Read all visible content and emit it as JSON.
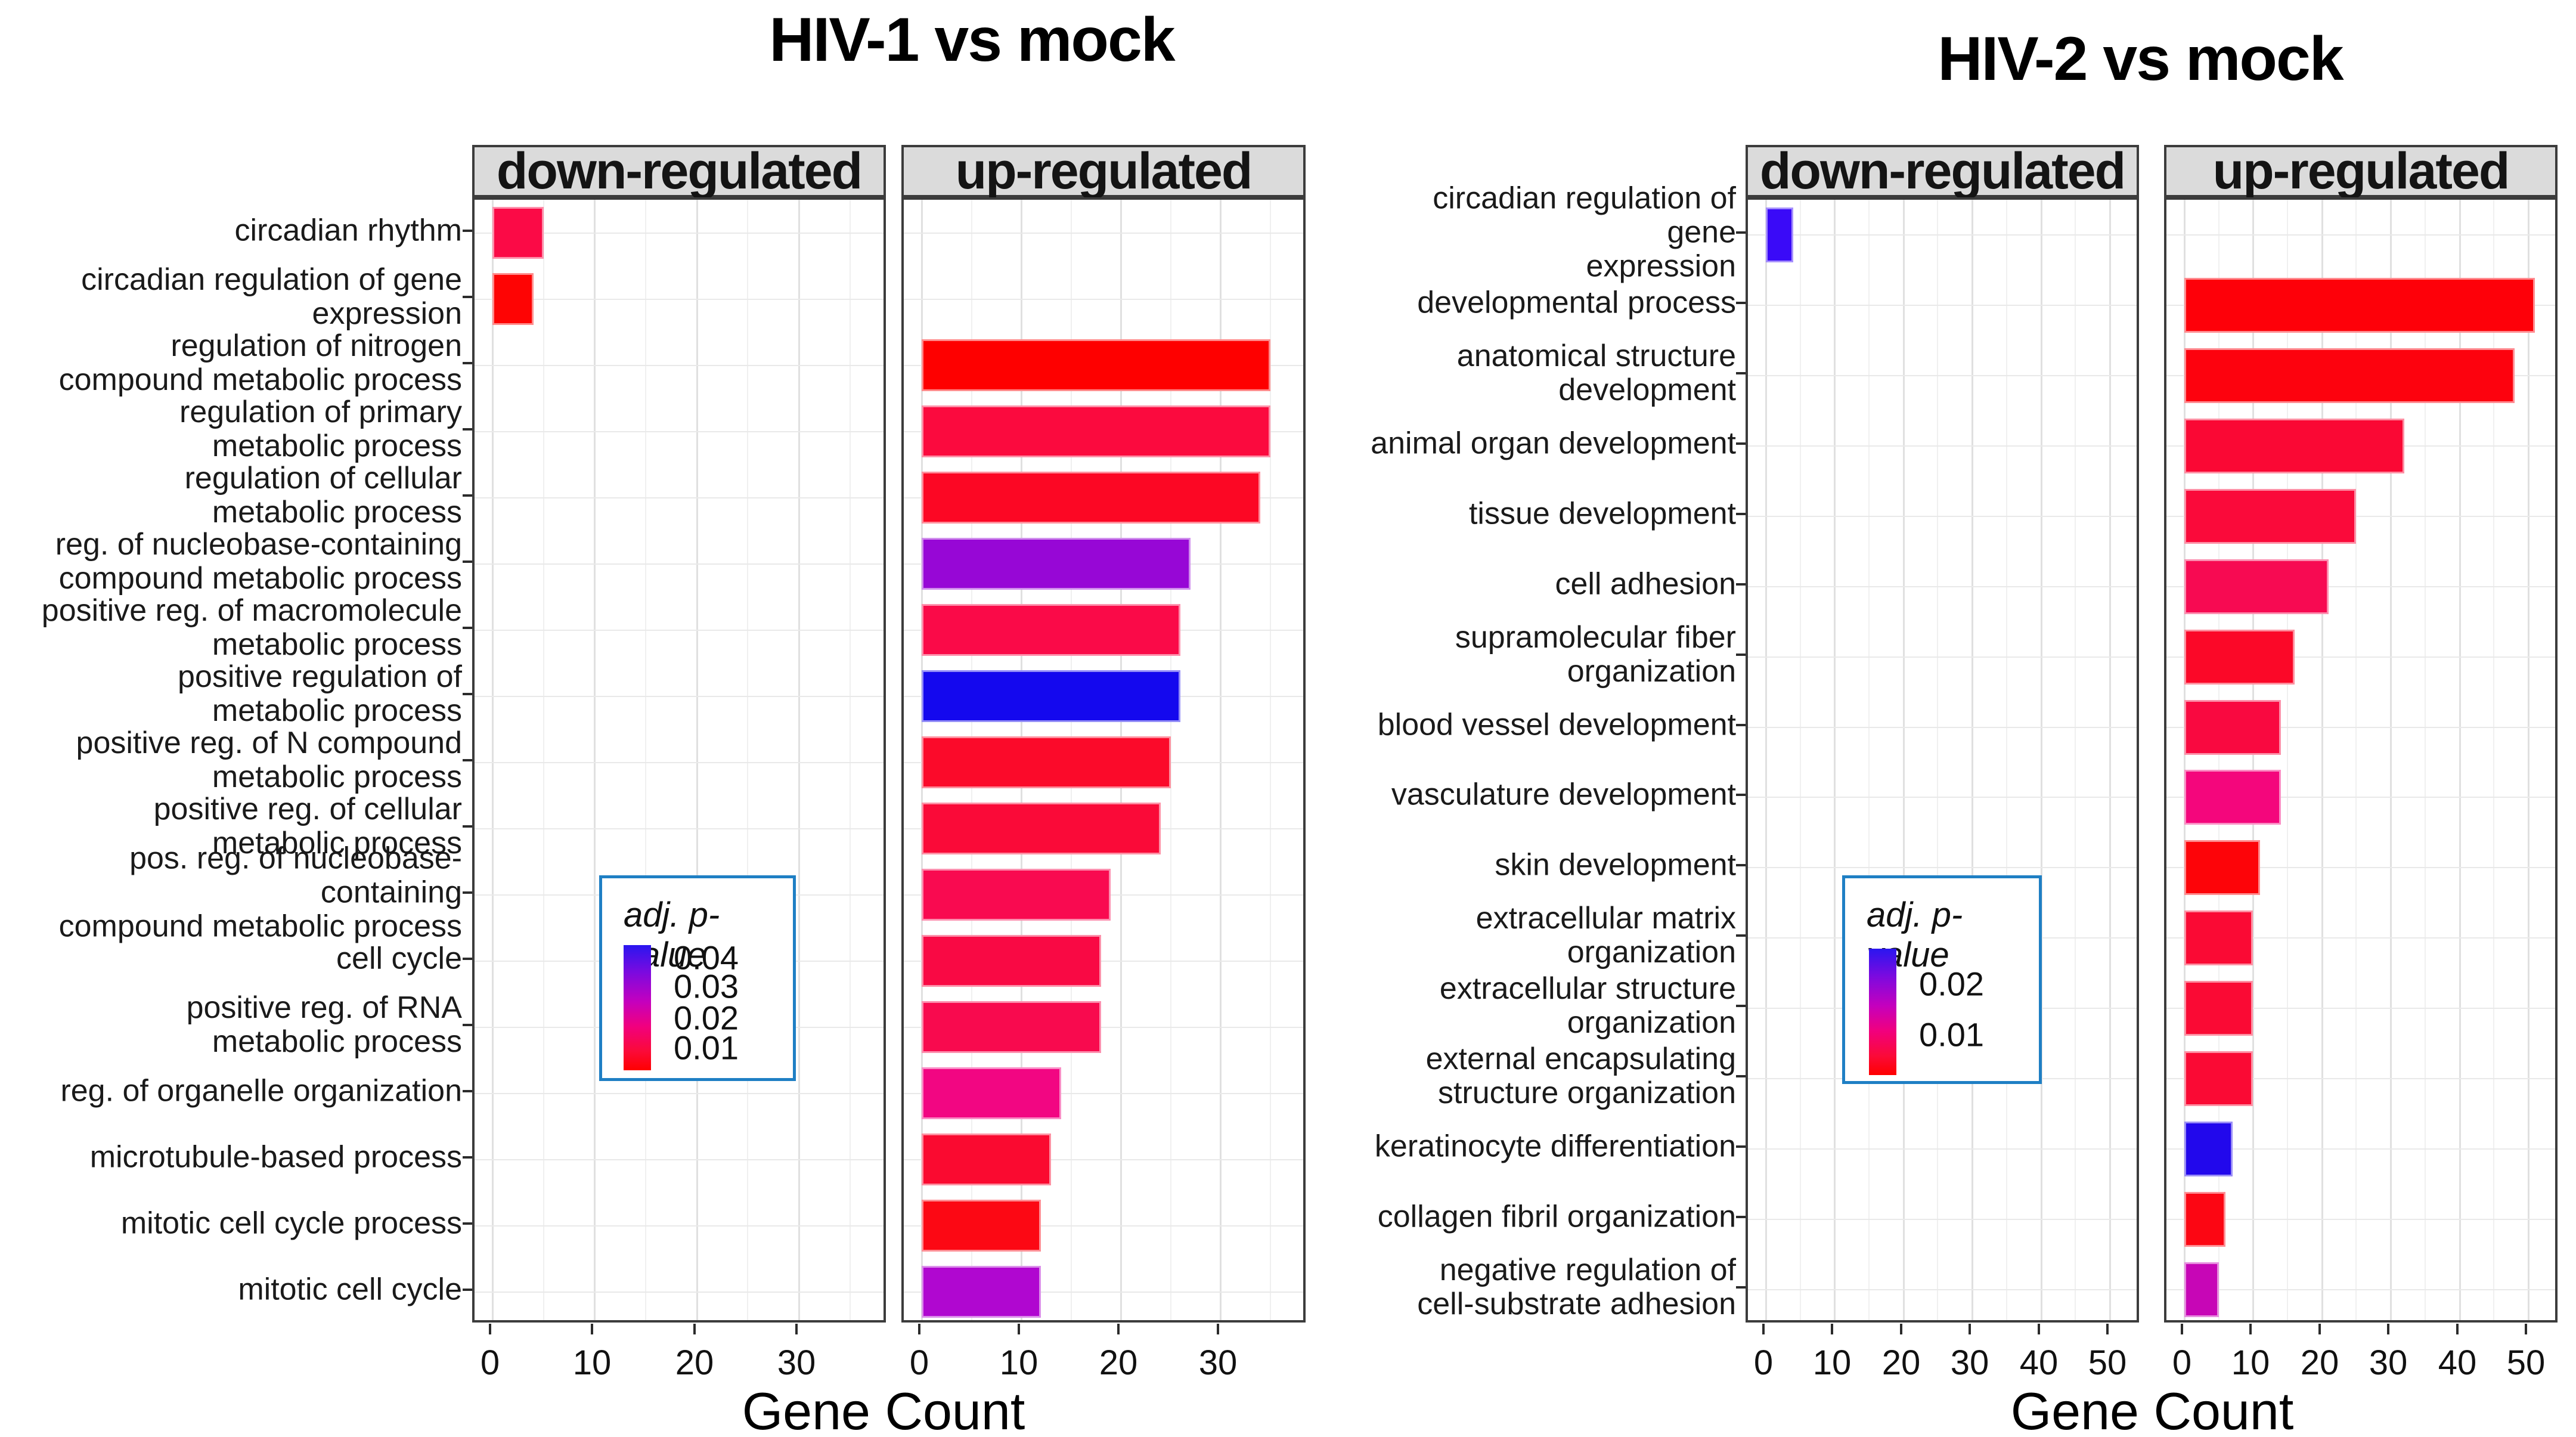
{
  "chart_data": [
    {
      "id": "hiv1",
      "type": "bar",
      "title": "HIV-1 vs mock",
      "facets": [
        "down-regulated",
        "up-regulated"
      ],
      "xlabel": "Gene Count",
      "x_ticks": [
        0,
        10,
        20,
        30
      ],
      "xlim": [
        0,
        37
      ],
      "grid": true,
      "legend": {
        "title": "adj. p-value",
        "labels": [
          "0.04",
          "0.03",
          "0.02",
          "0.01"
        ],
        "top_color": "#2a16f0",
        "bottom_color": "#ff0000",
        "border_color": "#1f7fc4"
      },
      "rows": [
        {
          "label": "circadian rhythm",
          "facet": "down",
          "value": 5,
          "color": "#FB0A46"
        },
        {
          "label": "circadian regulation of gene\nexpression",
          "facet": "down",
          "value": 4,
          "color": "#FE0404"
        },
        {
          "label": "regulation of nitrogen\ncompound metabolic process",
          "facet": "up",
          "value": 35,
          "color": "#FE0000"
        },
        {
          "label": "regulation of primary\nmetabolic process",
          "facet": "up",
          "value": 35,
          "color": "#FB0A3E"
        },
        {
          "label": "regulation of cellular\nmetabolic process",
          "facet": "up",
          "value": 34,
          "color": "#FC0724"
        },
        {
          "label": "reg. of nucleobase-containing\ncompound metabolic process",
          "facet": "up",
          "value": 27,
          "color": "#9707D6"
        },
        {
          "label": "positive reg. of macromolecule\nmetabolic process",
          "facet": "up",
          "value": 26,
          "color": "#FA0A48"
        },
        {
          "label": "positive regulation of\nmetabolic process",
          "facet": "up",
          "value": 26,
          "color": "#1408EE"
        },
        {
          "label": "positive reg. of N compound\nmetabolic process",
          "facet": "up",
          "value": 25,
          "color": "#FB0A2A"
        },
        {
          "label": "positive reg. of cellular\nmetabolic process",
          "facet": "up",
          "value": 24,
          "color": "#FA0A38"
        },
        {
          "label": "pos. reg. of nucleobase-containing\ncompound metabolic process",
          "facet": "up",
          "value": 19,
          "color": "#F90A50"
        },
        {
          "label": "cell cycle",
          "facet": "up",
          "value": 18,
          "color": "#F90944"
        },
        {
          "label": "positive reg. of RNA\nmetabolic process",
          "facet": "up",
          "value": 18,
          "color": "#F80A4E"
        },
        {
          "label": "reg. of organelle organization",
          "facet": "up",
          "value": 14,
          "color": "#F20682"
        },
        {
          "label": "microtubule-based process",
          "facet": "up",
          "value": 13,
          "color": "#FA0A30"
        },
        {
          "label": "mitotic cell cycle process",
          "facet": "up",
          "value": 12,
          "color": "#FC0814"
        },
        {
          "label": "mitotic cell cycle",
          "facet": "up",
          "value": 12,
          "color": "#B007D0"
        }
      ]
    },
    {
      "id": "hiv2",
      "type": "bar",
      "title": "HIV-2 vs mock",
      "facets": [
        "down-regulated",
        "up-regulated"
      ],
      "xlabel": "Gene Count",
      "x_ticks": [
        0,
        10,
        20,
        30,
        40,
        50
      ],
      "xlim": [
        0,
        52
      ],
      "grid": true,
      "legend": {
        "title": "adj. p-value",
        "labels": [
          "0.02",
          "0.01"
        ],
        "top_color": "#2a16f0",
        "bottom_color": "#ff0000",
        "border_color": "#1f7fc4"
      },
      "rows": [
        {
          "label": "circadian regulation of gene\nexpression",
          "facet": "down",
          "value": 4,
          "color": "#3A0AF8"
        },
        {
          "label": "developmental process",
          "facet": "up",
          "value": 51,
          "color": "#FE0009"
        },
        {
          "label": "anatomical structure\ndevelopment",
          "facet": "up",
          "value": 48,
          "color": "#FD020E"
        },
        {
          "label": "animal organ development",
          "facet": "up",
          "value": 32,
          "color": "#FA0834"
        },
        {
          "label": "tissue development",
          "facet": "up",
          "value": 25,
          "color": "#FA0A3A"
        },
        {
          "label": "cell adhesion",
          "facet": "up",
          "value": 21,
          "color": "#F70A52"
        },
        {
          "label": "supramolecular fiber\norganization",
          "facet": "up",
          "value": 16,
          "color": "#FB0828"
        },
        {
          "label": "blood vessel development",
          "facet": "up",
          "value": 14,
          "color": "#F90940"
        },
        {
          "label": "vasculature development",
          "facet": "up",
          "value": 14,
          "color": "#F4067C"
        },
        {
          "label": "skin development",
          "facet": "up",
          "value": 11,
          "color": "#FD0409"
        },
        {
          "label": "extracellular matrix\norganization",
          "facet": "up",
          "value": 10,
          "color": "#FA0A34"
        },
        {
          "label": "extracellular structure\norganization",
          "facet": "up",
          "value": 10,
          "color": "#FA0A34"
        },
        {
          "label": "external encapsulating\nstructure organization",
          "facet": "up",
          "value": 10,
          "color": "#FA0A34"
        },
        {
          "label": "keratinocyte differentiation",
          "facet": "up",
          "value": 7,
          "color": "#2208EC"
        },
        {
          "label": "collagen fibril organization",
          "facet": "up",
          "value": 6,
          "color": "#FC0613"
        },
        {
          "label": "negative regulation of\ncell-substrate adhesion",
          "facet": "up",
          "value": 5,
          "color": "#C706B6"
        }
      ]
    }
  ]
}
